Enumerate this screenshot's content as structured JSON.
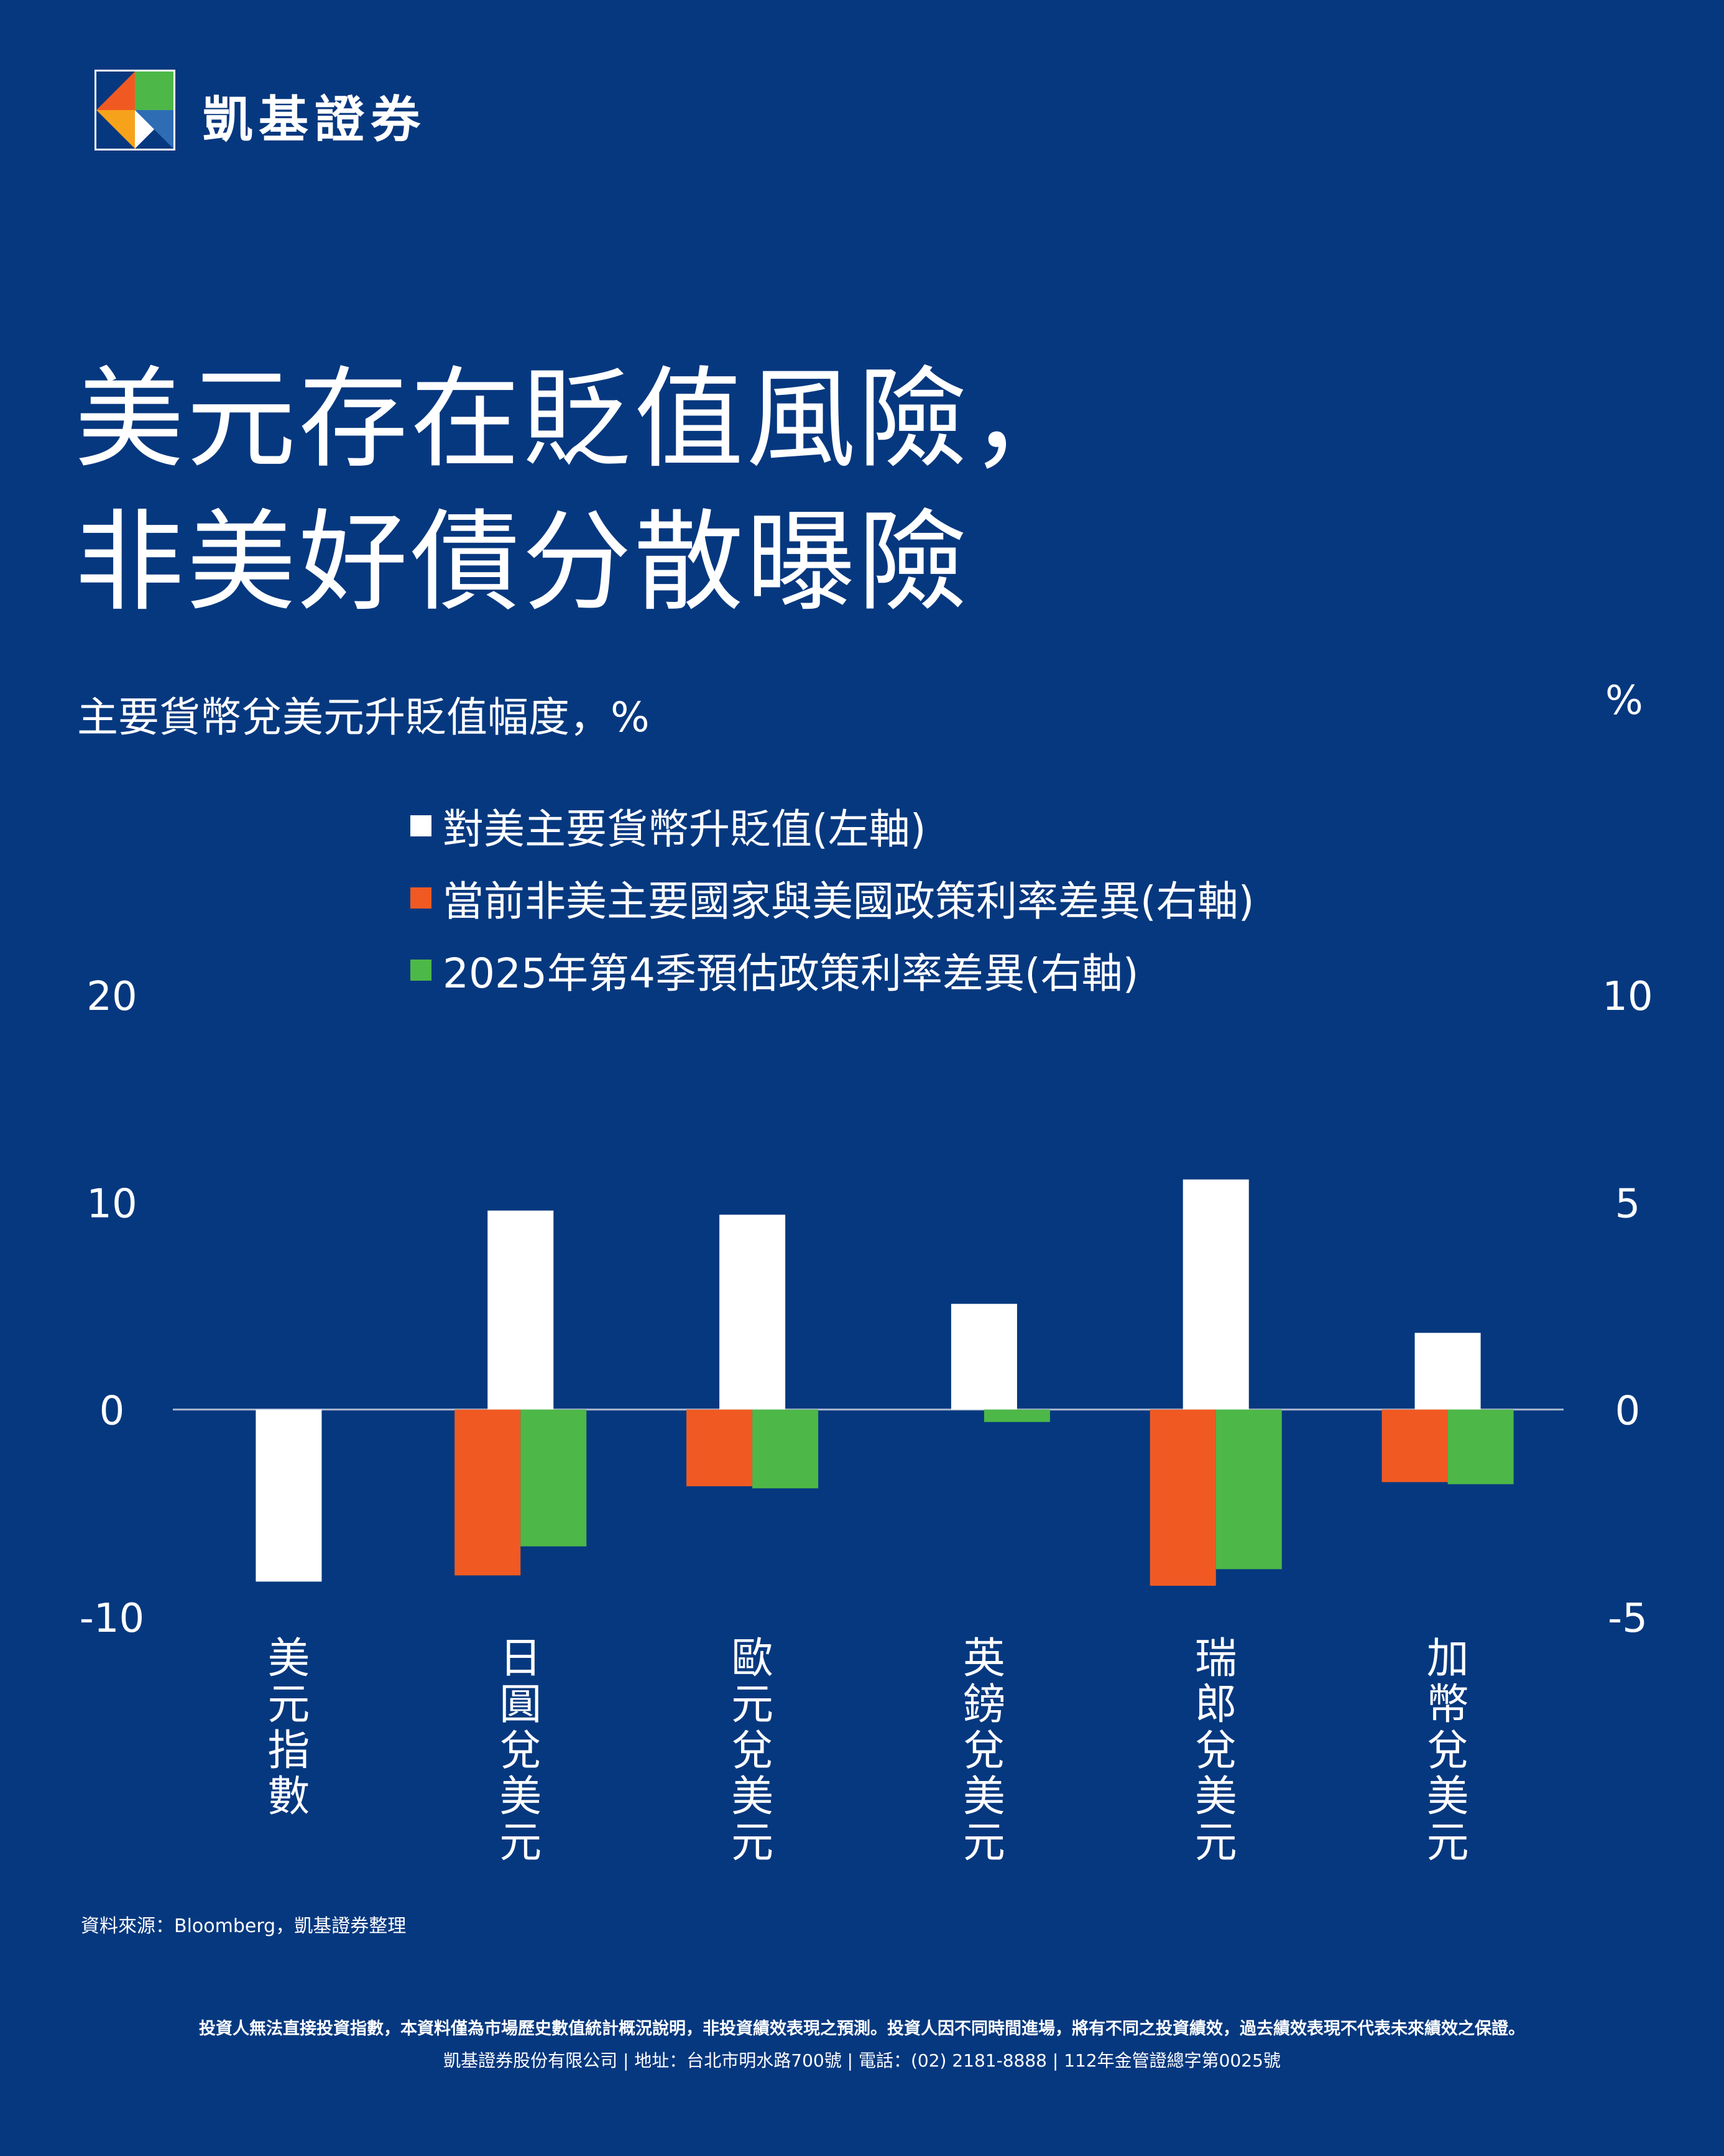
{
  "brand": {
    "name": "凱基證券"
  },
  "headline": {
    "line1": "美元存在貶值風險，",
    "line2": "非美好債分散曝險"
  },
  "subtitle": "主要貨幣兌美元升貶值幅度，%",
  "right_axis_unit": "%",
  "colors": {
    "background": "#06387F",
    "white": "#FFFFFF",
    "orange": "#F05A22",
    "green": "#4DB848",
    "axis": "#A9B7D0"
  },
  "chart_data": {
    "type": "bar",
    "categories": [
      "美元指數",
      "日圓兌美元",
      "歐元兌美元",
      "英鎊兌美元",
      "瑞郎兌美元",
      "加幣兌美元"
    ],
    "series": [
      {
        "name": "對美主要貨幣升貶值(左軸)",
        "axis": "left",
        "color": "#FFFFFF",
        "values": [
          -8.3,
          9.6,
          9.4,
          5.1,
          11.1,
          3.7
        ]
      },
      {
        "name": "當前非美主要國家與美國政策利率差異(右軸)",
        "axis": "right",
        "color": "#F05A22",
        "values": [
          null,
          -4.0,
          -1.85,
          null,
          -4.25,
          -1.75
        ]
      },
      {
        "name": "2025年第4季預估政策利率差異(右軸)",
        "axis": "right",
        "color": "#4DB848",
        "values": [
          null,
          -3.3,
          -1.9,
          -0.3,
          -3.85,
          -1.8
        ]
      }
    ],
    "left_axis": {
      "range": [
        -10,
        20
      ],
      "ticks": [
        "-10",
        "0",
        "10",
        "20"
      ]
    },
    "right_axis": {
      "range": [
        -5,
        10
      ],
      "ticks": [
        "-5",
        "0",
        "5",
        "10"
      ]
    },
    "legend_position": "top-center"
  },
  "source": "資料來源：Bloomberg，凱基證券整理",
  "disclaimer": "投資人無法直接投資指數，本資料僅為市場歷史數值統計概況說明，非投資績效表現之預測。投資人因不同時間進場，將有不同之投資績效，過去績效表現不代表未來績效之保證。",
  "company_info": "凱基證券股份有限公司 | 地址：台北市明水路700號 | 電話：(02) 2181-8888 | 112年金管證總字第0025號"
}
